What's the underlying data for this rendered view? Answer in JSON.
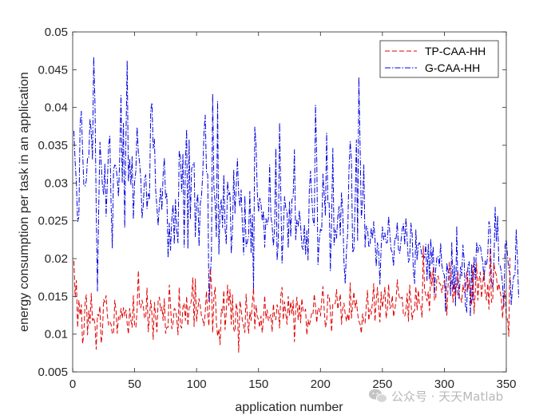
{
  "chart_data": {
    "type": "line",
    "title": "",
    "xlabel": "application number",
    "ylabel": "energy consumption per task in an application",
    "xlim": [
      0,
      350
    ],
    "ylim": [
      0.005,
      0.05
    ],
    "xticks": [
      0,
      50,
      100,
      150,
      200,
      250,
      300,
      350
    ],
    "yticks": [
      0.005,
      0.01,
      0.015,
      0.02,
      0.025,
      0.03,
      0.035,
      0.04,
      0.045,
      0.05
    ],
    "xtick_labels": [
      "0",
      "50",
      "100",
      "150",
      "200",
      "250",
      "300",
      "350"
    ],
    "ytick_labels": [
      "0.005",
      "0.01",
      "0.015",
      "0.02",
      "0.025",
      "0.03",
      "0.035",
      "0.04",
      "0.045",
      "0.05"
    ],
    "legend_position": "top-right",
    "series": [
      {
        "name": "TP-CAA-HH",
        "color": "#e00000",
        "style": "dashed",
        "values": [
          0.0197,
          0.0149,
          0.0171,
          0.0109,
          0.0145,
          0.0125,
          0.0139,
          0.0087,
          0.0101,
          0.0141,
          0.0152,
          0.0099,
          0.0131,
          0.0114,
          0.0154,
          0.0118,
          0.0122,
          0.0113,
          0.008,
          0.0126,
          0.0124,
          0.0137,
          0.0088,
          0.0101,
          0.0146,
          0.0142,
          0.0151,
          0.0125,
          0.0112,
          0.0116,
          0.0113,
          0.01,
          0.0101,
          0.0145,
          0.0131,
          0.0101,
          0.0123,
          0.0119,
          0.0134,
          0.0121,
          0.0135,
          0.0124,
          0.0132,
          0.0114,
          0.01,
          0.0134,
          0.0118,
          0.0109,
          0.0151,
          0.0111,
          0.0109,
          0.0131,
          0.0184,
          0.0139,
          0.0135,
          0.0145,
          0.0137,
          0.0121,
          0.0122,
          0.0161,
          0.0103,
          0.0122,
          0.0145,
          0.0126,
          0.0093,
          0.0142,
          0.0123,
          0.0103,
          0.0144,
          0.0149,
          0.0131,
          0.0136,
          0.0118,
          0.0147,
          0.0101,
          0.0109,
          0.0109,
          0.0165,
          0.0138,
          0.0107,
          0.0114,
          0.0134,
          0.0132,
          0.0122,
          0.0099,
          0.0162,
          0.0111,
          0.0108,
          0.0136,
          0.0141,
          0.0118,
          0.015,
          0.0111,
          0.0135,
          0.0137,
          0.0147,
          0.0175,
          0.011,
          0.0173,
          0.0117,
          0.0133,
          0.0147,
          0.0137,
          0.0124,
          0.0119,
          0.0111,
          0.0129,
          0.0157,
          0.0126,
          0.0111,
          0.0187,
          0.0167,
          0.0102,
          0.0149,
          0.0162,
          0.0115,
          0.0097,
          0.0107,
          0.0086,
          0.0133,
          0.0128,
          0.0158,
          0.0106,
          0.0129,
          0.0165,
          0.0138,
          0.0159,
          0.0113,
          0.0152,
          0.0106,
          0.0103,
          0.0141,
          0.0131,
          0.0076,
          0.0144,
          0.0133,
          0.0117,
          0.0111,
          0.0102,
          0.0153,
          0.0123,
          0.0101,
          0.0129,
          0.0118,
          0.0141,
          0.0161,
          0.0107,
          0.0138,
          0.0124,
          0.0119,
          0.0109,
          0.0124,
          0.0102,
          0.0121,
          0.0151,
          0.0121,
          0.0132,
          0.0118,
          0.0122,
          0.0126,
          0.0103,
          0.014,
          0.0122,
          0.0119,
          0.0139,
          0.0133,
          0.0108,
          0.0151,
          0.0162,
          0.0119,
          0.0143,
          0.0127,
          0.0113,
          0.015,
          0.0125,
          0.0143,
          0.0127,
          0.0145,
          0.009,
          0.0132,
          0.0149,
          0.0119,
          0.014,
          0.0115,
          0.0147,
          0.013,
          0.0129,
          0.0133,
          0.0099,
          0.0119,
          0.0111,
          0.0119,
          0.0129,
          0.0127,
          0.0153,
          0.0137,
          0.0115,
          0.0135,
          0.0133,
          0.0124,
          0.0145,
          0.0163,
          0.0133,
          0.0109,
          0.0116,
          0.0152,
          0.0151,
          0.0131,
          0.0103,
          0.014,
          0.0139,
          0.0141,
          0.0159,
          0.0133,
          0.0142,
          0.0153,
          0.0113,
          0.0134,
          0.0141,
          0.0126,
          0.0117,
          0.0127,
          0.0117,
          0.0168,
          0.0121,
          0.0139,
          0.0156,
          0.0135,
          0.0145,
          0.0127,
          0.0117,
          0.0113,
          0.0101,
          0.0127,
          0.0116,
          0.0114,
          0.0138,
          0.0158,
          0.0118,
          0.0133,
          0.0126,
          0.0143,
          0.0167,
          0.0117,
          0.0143,
          0.0162,
          0.0135,
          0.0116,
          0.0156,
          0.0135,
          0.0147,
          0.0162,
          0.0121,
          0.0133,
          0.0166,
          0.0134,
          0.0136,
          0.0151,
          0.0123,
          0.0132,
          0.0145,
          0.0172,
          0.0155,
          0.0146,
          0.0148,
          0.0149,
          0.0125,
          0.0124,
          0.0131,
          0.0154,
          0.0117,
          0.0165,
          0.0144,
          0.0119,
          0.013,
          0.0131,
          0.0163,
          0.0132,
          0.0158,
          0.0138,
          0.0137,
          0.0122,
          0.0217,
          0.0159,
          0.0152,
          0.0144,
          0.0156,
          0.0131,
          0.0182,
          0.0164,
          0.0188,
          0.0145,
          0.0146,
          0.0175,
          0.0177,
          0.0167,
          0.0166,
          0.0155,
          0.0165,
          0.0171,
          0.0165,
          0.0125,
          0.0163,
          0.0195,
          0.0185,
          0.017,
          0.0142,
          0.0167,
          0.0149,
          0.0167,
          0.0182,
          0.0149,
          0.0149,
          0.0142,
          0.0165,
          0.0155,
          0.0157,
          0.0183,
          0.0158,
          0.0172,
          0.0157,
          0.0138,
          0.0191,
          0.0127,
          0.0157,
          0.0194,
          0.0145,
          0.0172,
          0.0182,
          0.0148,
          0.0168,
          0.0183,
          0.0155,
          0.0145,
          0.0167,
          0.0133,
          0.0214,
          0.0142,
          0.0144,
          0.0193,
          0.0183,
          0.0178,
          0.0157,
          0.0167,
          0.0157,
          0.0147,
          0.0121,
          0.0151,
          0.0157,
          0.0119,
          0.0122,
          0.0097,
          0.0201
        ]
      },
      {
        "name": "G-CAA-HH",
        "color": "#0000e0",
        "style": "dashdot",
        "values": [
          0.0369,
          0.0328,
          0.03,
          0.0249,
          0.0255,
          0.0379,
          0.0395,
          0.0343,
          0.0297,
          0.0296,
          0.0303,
          0.0334,
          0.0334,
          0.0384,
          0.0369,
          0.0331,
          0.0467,
          0.0406,
          0.0265,
          0.0157,
          0.0263,
          0.0354,
          0.0327,
          0.0297,
          0.0285,
          0.0325,
          0.0256,
          0.0301,
          0.0349,
          0.0362,
          0.0273,
          0.0214,
          0.0318,
          0.0324,
          0.0322,
          0.0306,
          0.0282,
          0.0335,
          0.0416,
          0.0301,
          0.0379,
          0.0241,
          0.0359,
          0.0462,
          0.0302,
          0.0332,
          0.0298,
          0.0335,
          0.0252,
          0.0302,
          0.0316,
          0.0374,
          0.0341,
          0.0327,
          0.0305,
          0.0254,
          0.0271,
          0.0305,
          0.0311,
          0.0266,
          0.0286,
          0.0278,
          0.0397,
          0.0406,
          0.0346,
          0.0358,
          0.029,
          0.0268,
          0.0244,
          0.0273,
          0.0293,
          0.0264,
          0.031,
          0.0333,
          0.0279,
          0.0286,
          0.0201,
          0.0247,
          0.0211,
          0.0253,
          0.0271,
          0.0219,
          0.0278,
          0.0236,
          0.0221,
          0.0343,
          0.0334,
          0.0289,
          0.0338,
          0.0215,
          0.0328,
          0.0371,
          0.0213,
          0.0357,
          0.0253,
          0.0319,
          0.0324,
          0.0327,
          0.0229,
          0.0273,
          0.0285,
          0.0216,
          0.0273,
          0.0283,
          0.0312,
          0.0367,
          0.039,
          0.0314,
          0.0311,
          0.0142,
          0.0171,
          0.0206,
          0.0418,
          0.0294,
          0.0274,
          0.0229,
          0.0408,
          0.0206,
          0.0267,
          0.0278,
          0.0241,
          0.0311,
          0.024,
          0.0219,
          0.0302,
          0.0284,
          0.0288,
          0.0207,
          0.0239,
          0.0317,
          0.026,
          0.0295,
          0.0332,
          0.0284,
          0.0269,
          0.0291,
          0.0243,
          0.0205,
          0.0283,
          0.0216,
          0.0222,
          0.023,
          0.0289,
          0.0208,
          0.0258,
          0.0156,
          0.0374,
          0.0352,
          0.0288,
          0.0262,
          0.028,
          0.0273,
          0.025,
          0.0263,
          0.0215,
          0.0253,
          0.0245,
          0.0253,
          0.0324,
          0.0256,
          0.0244,
          0.0217,
          0.0239,
          0.0346,
          0.0198,
          0.0222,
          0.038,
          0.0286,
          0.0194,
          0.0234,
          0.0282,
          0.0267,
          0.0262,
          0.0214,
          0.0275,
          0.0229,
          0.0278,
          0.0282,
          0.0344,
          0.0225,
          0.0251,
          0.0243,
          0.0263,
          0.0244,
          0.0216,
          0.0212,
          0.0245,
          0.0205,
          0.0237,
          0.0198,
          0.029,
          0.0316,
          0.0281,
          0.0251,
          0.0244,
          0.0403,
          0.0333,
          0.0192,
          0.0224,
          0.0239,
          0.0236,
          0.0312,
          0.0286,
          0.0257,
          0.0366,
          0.0274,
          0.0275,
          0.0184,
          0.025,
          0.0346,
          0.0218,
          0.0238,
          0.0227,
          0.0256,
          0.0269,
          0.0231,
          0.0287,
          0.0262,
          0.0194,
          0.0167,
          0.0212,
          0.0233,
          0.0317,
          0.0355,
          0.0331,
          0.0208,
          0.0213,
          0.0276,
          0.0357,
          0.0224,
          0.044,
          0.0349,
          0.0254,
          0.0274,
          0.0324,
          0.0215,
          0.0243,
          0.0241,
          0.0215,
          0.0219,
          0.024,
          0.0226,
          0.0249,
          0.0227,
          0.019,
          0.0221,
          0.0211,
          0.0166,
          0.0216,
          0.0242,
          0.0225,
          0.0234,
          0.0221,
          0.0221,
          0.0256,
          0.0233,
          0.0212,
          0.0208,
          0.019,
          0.0227,
          0.0225,
          0.0248,
          0.0212,
          0.0207,
          0.0223,
          0.0239,
          0.0246,
          0.0218,
          0.0254,
          0.0225,
          0.0195,
          0.0201,
          0.0247,
          0.0233,
          0.0183,
          0.0167,
          0.0238,
          0.0198,
          0.0219,
          0.0221,
          0.0214,
          0.0202,
          0.0205,
          0.0201,
          0.0219,
          0.0171,
          0.0219,
          0.0172,
          0.0226,
          0.0193,
          0.0216,
          0.0152,
          0.0186,
          0.0202,
          0.0203,
          0.019,
          0.022,
          0.0191,
          0.0182,
          0.0178,
          0.0129,
          0.0194,
          0.0181,
          0.0187,
          0.0151,
          0.0221,
          0.0159,
          0.0191,
          0.0137,
          0.0243,
          0.0152,
          0.0146,
          0.0189,
          0.0177,
          0.0218,
          0.0198,
          0.0138,
          0.0129,
          0.0191,
          0.0196,
          0.0123,
          0.0193,
          0.0144,
          0.0202,
          0.0172,
          0.0221,
          0.0208,
          0.0217,
          0.0218,
          0.0205,
          0.0196,
          0.0171,
          0.0197,
          0.0191,
          0.0204,
          0.0249,
          0.0242,
          0.0171,
          0.0161,
          0.0193,
          0.0268,
          0.0223,
          0.0256,
          0.0192,
          0.0191,
          0.0182,
          0.0165,
          0.0136,
          0.0217,
          0.0225,
          0.0204,
          0.0185,
          0.0181,
          0.0139,
          0.0163,
          0.0177,
          0.0178,
          0.0238,
          0.0201,
          0.0147
        ]
      }
    ]
  },
  "watermark": {
    "text": "公众号 · 天天Matlab",
    "icon": "wechat-icon"
  }
}
